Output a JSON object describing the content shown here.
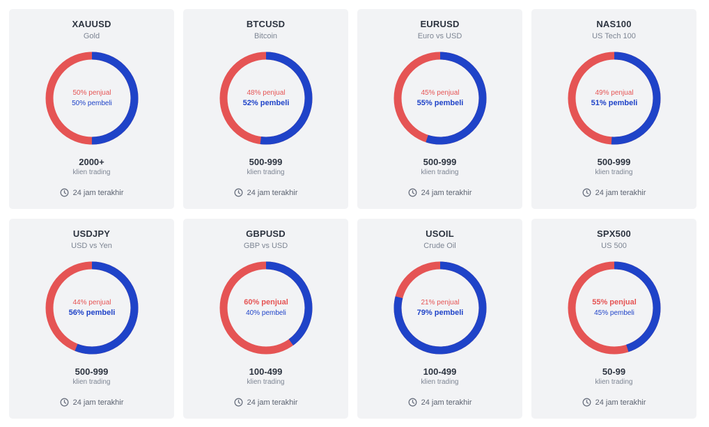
{
  "colors": {
    "sell": "#e55454",
    "buy": "#1f43c8",
    "card": "#f2f3f5"
  },
  "period_icon": "clock-icon",
  "cards": [
    {
      "symbol": "XAUUSD",
      "subtitle": "Gold",
      "sell_pct": 50,
      "buy_pct": 50,
      "sell_text": "50% penjual",
      "buy_text": "50% pembeli",
      "count": "2000+",
      "count_label": "klien trading",
      "period": "24 jam terakhir"
    },
    {
      "symbol": "BTCUSD",
      "subtitle": "Bitcoin",
      "sell_pct": 48,
      "buy_pct": 52,
      "sell_text": "48% penjual",
      "buy_text": "52% pembeli",
      "count": "500-999",
      "count_label": "klien trading",
      "period": "24 jam terakhir"
    },
    {
      "symbol": "EURUSD",
      "subtitle": "Euro vs USD",
      "sell_pct": 45,
      "buy_pct": 55,
      "sell_text": "45% penjual",
      "buy_text": "55% pembeli",
      "count": "500-999",
      "count_label": "klien trading",
      "period": "24 jam terakhir"
    },
    {
      "symbol": "NAS100",
      "subtitle": "US Tech 100",
      "sell_pct": 49,
      "buy_pct": 51,
      "sell_text": "49% penjual",
      "buy_text": "51% pembeli",
      "count": "500-999",
      "count_label": "klien trading",
      "period": "24 jam terakhir"
    },
    {
      "symbol": "USDJPY",
      "subtitle": "USD vs Yen",
      "sell_pct": 44,
      "buy_pct": 56,
      "sell_text": "44% penjual",
      "buy_text": "56% pembeli",
      "count": "500-999",
      "count_label": "klien trading",
      "period": "24 jam terakhir"
    },
    {
      "symbol": "GBPUSD",
      "subtitle": "GBP vs USD",
      "sell_pct": 60,
      "buy_pct": 40,
      "sell_text": "60% penjual",
      "buy_text": "40% pembeli",
      "count": "100-499",
      "count_label": "klien trading",
      "period": "24 jam terakhir"
    },
    {
      "symbol": "USOIL",
      "subtitle": "Crude Oil",
      "sell_pct": 21,
      "buy_pct": 79,
      "sell_text": "21% penjual",
      "buy_text": "79% pembeli",
      "count": "100-499",
      "count_label": "klien trading",
      "period": "24 jam terakhir"
    },
    {
      "symbol": "SPX500",
      "subtitle": "US 500",
      "sell_pct": 55,
      "buy_pct": 45,
      "sell_text": "55% penjual",
      "buy_text": "45% pembeli",
      "count": "50-99",
      "count_label": "klien trading",
      "period": "24 jam terakhir"
    }
  ]
}
